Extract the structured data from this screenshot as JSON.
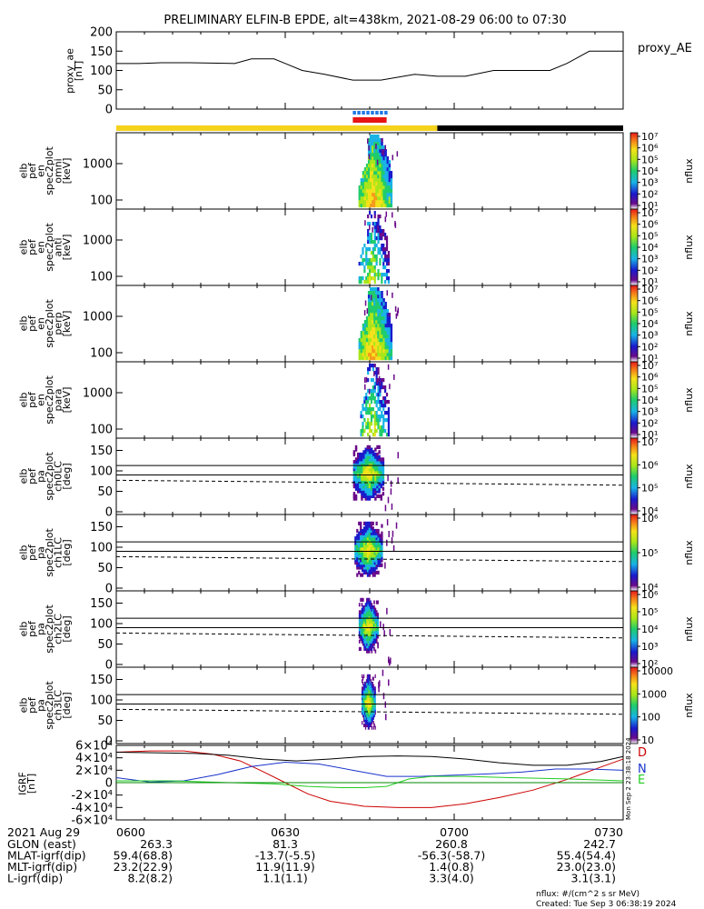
{
  "chart_data": {
    "type": "spectrogram-stack",
    "title": "PRELIMINARY ELFIN-B EPDE, alt=438km, 2021-08-29 06:00 to 07:30",
    "x_range": [
      0,
      90
    ],
    "x_unit": "minutes after 06:00",
    "x_ticks": [
      "0600",
      "0630",
      "0700",
      "0730"
    ],
    "x_tick_values": [
      0,
      30,
      60,
      90
    ],
    "ae_panel": {
      "ylabel_lines": [
        "proxy_ae",
        "[nT]"
      ],
      "legend": "proxy_AE",
      "ylim": [
        0,
        200
      ],
      "yticks": [
        "0",
        "50",
        "100",
        "150",
        "200"
      ],
      "x": [
        0,
        4,
        8,
        13,
        21,
        24,
        28,
        30,
        33,
        37,
        42,
        47,
        53,
        57,
        62,
        67,
        71,
        74,
        77,
        80,
        84,
        87,
        90
      ],
      "y": [
        118,
        118,
        120,
        120,
        118,
        130,
        130,
        118,
        100,
        90,
        75,
        75,
        90,
        85,
        85,
        100,
        100,
        100,
        100,
        118,
        150,
        150,
        150
      ]
    },
    "science_zone_bars": {
      "blue_dashed": [
        42,
        48
      ],
      "red": [
        42,
        48
      ]
    },
    "sunlight_bar": {
      "sunlit_color": "#f5d21c",
      "shadow_color": "#000000",
      "shadow_start": 57
    },
    "spectrogram_panels": [
      {
        "ylabel_lines": [
          "elb",
          "pef",
          "en",
          "spec2plot",
          "omni",
          "[keV]"
        ],
        "yticks": [
          "100",
          "1000"
        ],
        "colorbar": [
          "10¹",
          "10²",
          "10³",
          "10⁴",
          "10⁵",
          "10⁶",
          "10⁷"
        ],
        "cb_label": "nflux",
        "shape": "energy",
        "start": 43,
        "end": 49
      },
      {
        "ylabel_lines": [
          "elb",
          "pef",
          "en",
          "spec2plot",
          "anti",
          "[keV]"
        ],
        "yticks": [
          "100",
          "1000"
        ],
        "colorbar": [
          "10¹",
          "10²",
          "10³",
          "10⁴",
          "10⁵",
          "10⁶",
          "10⁷"
        ],
        "cb_label": "nflux",
        "shape": "energy-weak",
        "start": 43,
        "end": 48.5
      },
      {
        "ylabel_lines": [
          "elb",
          "pef",
          "en",
          "spec2plot",
          "perp",
          "[keV]"
        ],
        "yticks": [
          "100",
          "1000"
        ],
        "colorbar": [
          "10¹",
          "10²",
          "10³",
          "10⁴",
          "10⁵",
          "10⁶",
          "10⁷"
        ],
        "cb_label": "nflux",
        "shape": "energy",
        "start": 43,
        "end": 49
      },
      {
        "ylabel_lines": [
          "elb",
          "pef",
          "en",
          "spec2plot",
          "para",
          "[keV]"
        ],
        "yticks": [
          "100",
          "1000"
        ],
        "colorbar": [
          "10¹",
          "10²",
          "10³",
          "10⁴",
          "10⁵",
          "10⁶",
          "10⁷"
        ],
        "cb_label": "nflux",
        "shape": "energy-weak",
        "start": 43,
        "end": 48.5
      }
    ],
    "pitch_panels": [
      {
        "ylabel_lines": [
          "elb",
          "pef",
          "pa",
          "spec2plot",
          "ch0LC",
          "[deg]"
        ],
        "yticks": [
          "0",
          "50",
          "100",
          "150"
        ],
        "colorbar": [
          "10⁴",
          "10⁵",
          "10⁶",
          "10⁷"
        ],
        "cb_label": "nflux",
        "hlines": [
          90,
          113
        ],
        "dashed": [
          77,
          65
        ],
        "width": 5.5
      },
      {
        "ylabel_lines": [
          "elb",
          "pef",
          "pa",
          "spec2plot",
          "ch1LC",
          "[deg]"
        ],
        "yticks": [
          "0",
          "50",
          "100",
          "150"
        ],
        "colorbar": [
          "10⁴",
          "10⁵",
          "10⁶"
        ],
        "cb_label": "nflux",
        "hlines": [
          90,
          113
        ],
        "dashed": [
          77,
          65
        ],
        "width": 5
      },
      {
        "ylabel_lines": [
          "elb",
          "pef",
          "pa",
          "spec2plot",
          "ch2LC",
          "[deg]"
        ],
        "yticks": [
          "0",
          "50",
          "100",
          "150"
        ],
        "colorbar": [
          "10²",
          "10³",
          "10⁴",
          "10⁵",
          "10⁶"
        ],
        "cb_label": "nflux",
        "hlines": [
          90,
          113
        ],
        "dashed": [
          77,
          65
        ],
        "width": 3.5
      },
      {
        "ylabel_lines": [
          "elb",
          "pef",
          "pa",
          "spec2plot",
          "ch3LC",
          "[deg]"
        ],
        "yticks": [
          "0",
          "50",
          "100",
          "150"
        ],
        "colorbar": [
          "10",
          "100",
          "1000",
          "10000"
        ],
        "cb_label": "nflux",
        "hlines": [
          90,
          113
        ],
        "dashed": [
          77,
          65
        ],
        "width": 2.5
      }
    ],
    "igrf_panel": {
      "ylabel_lines": [
        "IGRF",
        "[nT]"
      ],
      "ylim": [
        -60000,
        60000
      ],
      "yticks": [
        "-6×10⁴",
        "-4×10⁴",
        "-2×10⁴",
        "0",
        "2×10⁴",
        "4×10⁴",
        "6×10⁴"
      ],
      "series": [
        {
          "name": "D",
          "color": "#cc0000",
          "x": [
            0,
            6,
            12,
            17,
            22,
            26,
            30,
            34,
            38,
            44,
            50,
            56,
            62,
            68,
            74,
            80,
            86,
            90
          ],
          "y": [
            49000,
            51000,
            51000,
            46000,
            35000,
            18000,
            0,
            -18000,
            -30000,
            -38000,
            -40000,
            -40000,
            -34000,
            -24000,
            -12000,
            5000,
            25000,
            38000
          ]
        },
        {
          "name": "N",
          "color": "#1a33cc",
          "x": [
            0,
            6,
            12,
            18,
            24,
            30,
            36,
            42,
            48,
            54,
            60,
            66,
            72,
            78,
            84,
            90
          ],
          "y": [
            8000,
            1000,
            3000,
            13000,
            26000,
            33000,
            30000,
            20000,
            10000,
            10000,
            12000,
            14000,
            17000,
            22000,
            22000,
            20000
          ]
        },
        {
          "name": "E",
          "color": "#22cc22",
          "x": [
            0,
            10,
            20,
            28,
            34,
            40,
            44,
            48,
            52,
            56,
            62,
            70,
            80,
            90
          ],
          "y": [
            3000,
            3000,
            0,
            -2000,
            -6000,
            -8000,
            -8000,
            -6000,
            6000,
            10000,
            10000,
            8000,
            6000,
            3000
          ]
        },
        {
          "name": "total",
          "color": "#000000",
          "x": [
            0,
            8,
            14,
            20,
            26,
            32,
            38,
            44,
            50,
            56,
            62,
            68,
            74,
            80,
            86,
            90
          ],
          "y": [
            49000,
            48000,
            47000,
            44000,
            38000,
            35000,
            38000,
            42000,
            43000,
            42000,
            38000,
            32000,
            28000,
            28000,
            34000,
            42000
          ]
        },
        {
          "name": "zero",
          "color": "#008800",
          "x": [
            0,
            90
          ],
          "y": [
            0,
            0
          ]
        }
      ],
      "legend": [
        "D",
        "N",
        "E"
      ]
    },
    "orbit_table": {
      "date": "2021 Aug 29",
      "rows": [
        {
          "label": "GLON (east)",
          "values": [
            "263.3",
            "81.3",
            "260.8",
            "242.7"
          ]
        },
        {
          "label": "MLAT-igrf(dip)",
          "values": [
            "59.4(68.8)",
            "-13.7(-5.5)",
            "-56.3(-58.7)",
            "55.4(54.4)"
          ]
        },
        {
          "label": "MLT-igrf(dip)",
          "values": [
            "23.2(22.9)",
            "11.9(11.9)",
            "1.4(0.8)",
            "23.0(23.0)"
          ]
        },
        {
          "label": "L-igrf(dip)",
          "values": [
            "8.2(8.2)",
            "1.1(1.1)",
            "3.3(4.0)",
            "3.1(3.1)"
          ]
        }
      ]
    },
    "units_note": "nflux: #/(cm^2 s sr MeV)",
    "created": "Created: Tue Sep  3 06:38:19 2024",
    "side_stamp": "Mon Sep  2 23:38:18 2024"
  }
}
